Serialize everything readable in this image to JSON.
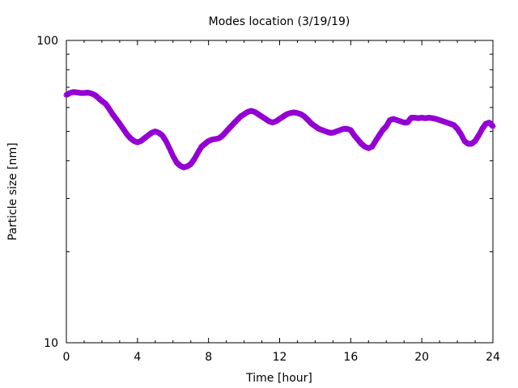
{
  "chart_data": {
    "type": "scatter",
    "title": "Modes location (3/19/19)",
    "xlabel": "Time [hour]",
    "ylabel": "Particle size [nm]",
    "xlim": [
      0,
      24
    ],
    "ylim": [
      10,
      100
    ],
    "yscale": "log",
    "grid": false,
    "marker_color": "#9400D3",
    "x_ticks": [
      0,
      4,
      8,
      12,
      16,
      20,
      24
    ],
    "x_tick_labels": [
      "0",
      "4",
      "8",
      "12",
      "16",
      "20",
      "24"
    ],
    "y_ticks": [
      10,
      100
    ],
    "y_tick_labels": [
      "10",
      "100"
    ],
    "series": [
      {
        "x": [
          0.0,
          0.2,
          0.4,
          0.6,
          0.8,
          1.0,
          1.2,
          1.4,
          1.6,
          1.8,
          2.0,
          2.2,
          2.4,
          2.6,
          2.8,
          3.0,
          3.2,
          3.4,
          3.6,
          3.8,
          4.0,
          4.2,
          4.4,
          4.6,
          4.8,
          5.0,
          5.2,
          5.4,
          5.6,
          5.8,
          6.0,
          6.2,
          6.4,
          6.6,
          6.8,
          7.0,
          7.2,
          7.4,
          7.6,
          7.8,
          8.0,
          8.2,
          8.4,
          8.6,
          8.8,
          9.0,
          9.2,
          9.4,
          9.6,
          9.8,
          10.0,
          10.2,
          10.4,
          10.6,
          10.8,
          11.0,
          11.2,
          11.4,
          11.6,
          11.8,
          12.0,
          12.2,
          12.4,
          12.6,
          12.8,
          13.0,
          13.2,
          13.4,
          13.6,
          13.8,
          14.0,
          14.2,
          14.4,
          14.6,
          14.8,
          15.0,
          15.2,
          15.4,
          15.6,
          15.8,
          16.0,
          16.2,
          16.4,
          16.6,
          16.8,
          17.0,
          17.2,
          17.4,
          17.6,
          17.8,
          18.0,
          18.2,
          18.4,
          18.6,
          18.8,
          19.0,
          19.2,
          19.4,
          19.6,
          19.8,
          20.0,
          20.2,
          20.4,
          20.6,
          20.8,
          21.0,
          21.2,
          21.4,
          21.6,
          21.8,
          22.0,
          22.2,
          22.4,
          22.6,
          22.8,
          23.0,
          23.2,
          23.4,
          23.6,
          23.8,
          24.0
        ],
        "y": [
          66.0,
          67.0,
          67.5,
          67.3,
          67.0,
          67.0,
          67.2,
          66.8,
          66.0,
          64.5,
          63.0,
          61.8,
          59.5,
          57.0,
          55.0,
          53.0,
          51.0,
          49.0,
          47.5,
          46.5,
          46.0,
          46.5,
          47.5,
          48.5,
          49.5,
          50.0,
          49.5,
          48.5,
          46.5,
          44.0,
          41.5,
          39.5,
          38.5,
          38.0,
          38.3,
          39.0,
          40.5,
          42.5,
          44.5,
          45.5,
          46.5,
          47.0,
          47.2,
          47.5,
          48.5,
          50.0,
          51.5,
          53.0,
          54.5,
          56.0,
          57.0,
          58.0,
          58.5,
          58.0,
          57.0,
          56.0,
          55.0,
          54.0,
          53.5,
          54.0,
          55.0,
          56.0,
          57.0,
          57.5,
          57.8,
          57.5,
          57.0,
          56.0,
          54.5,
          53.0,
          52.0,
          51.0,
          50.5,
          50.0,
          49.5,
          49.5,
          50.0,
          50.5,
          51.0,
          51.0,
          50.5,
          48.5,
          47.0,
          45.5,
          44.5,
          44.0,
          44.5,
          46.5,
          48.5,
          50.5,
          52.0,
          54.5,
          55.0,
          54.5,
          54.0,
          53.5,
          53.5,
          55.5,
          55.5,
          55.3,
          55.5,
          55.3,
          55.5,
          55.3,
          55.0,
          54.5,
          54.0,
          53.5,
          53.0,
          52.5,
          51.0,
          49.0,
          46.5,
          45.5,
          45.5,
          46.5,
          48.5,
          51.0,
          53.0,
          53.5,
          52.0
        ]
      }
    ]
  }
}
